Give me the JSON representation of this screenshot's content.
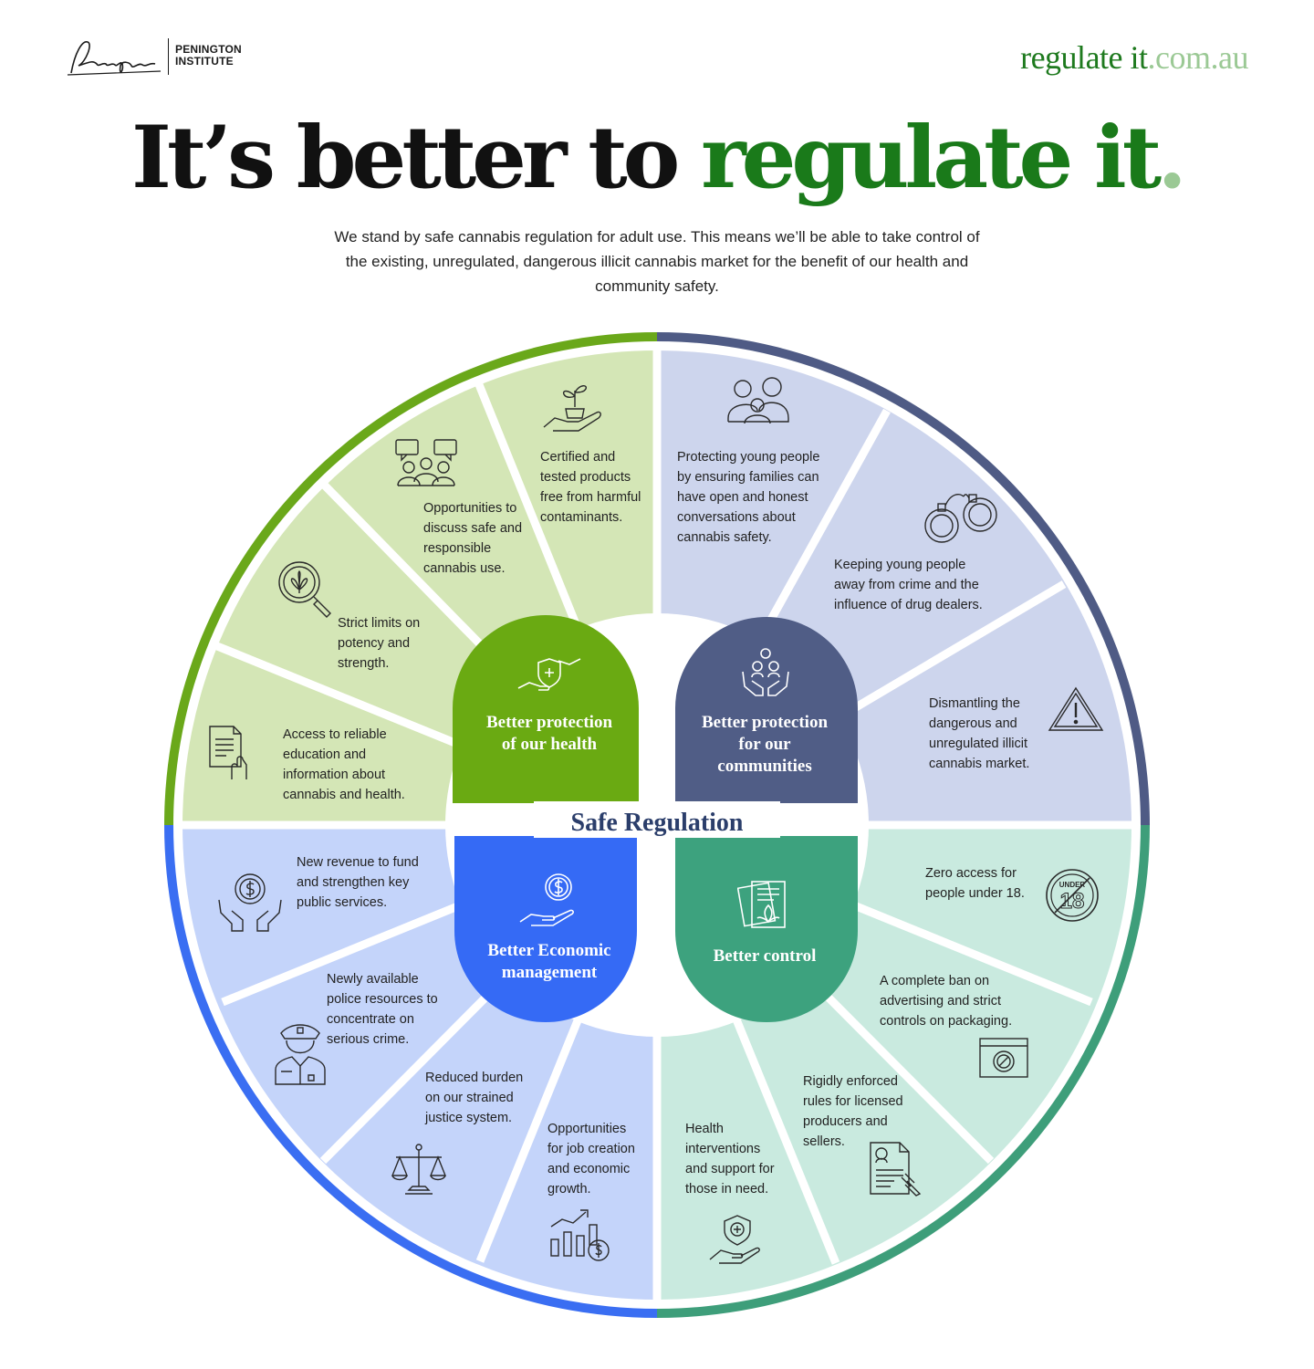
{
  "header": {
    "logo_text_line1": "PENINGTON",
    "logo_text_line2": "INSTITUTE",
    "site_url_main": "regulate it",
    "site_url_suffix": ".com.au"
  },
  "title": {
    "part1": "It’s better to ",
    "part2": "regulate it",
    "part3": "."
  },
  "intro": "We stand by safe cannabis regulation for adult use. This means we’ll be able to take control of the existing, unregulated, dangerous illicit cannabis market for the benefit of our health and community safety.",
  "colors": {
    "health_ring": "#6aa81a",
    "health_hub": "#6aaa12",
    "health_segment": "#d4e6b6",
    "community_ring": "#4f5b85",
    "community_hub": "#505d86",
    "community_segment": "#cdd5ed",
    "economic_ring": "#3a6ef2",
    "economic_hub": "#356af5",
    "economic_segment": "#c4d4fa",
    "control_ring": "#3e9e7a",
    "control_hub": "#3da27e",
    "control_segment": "#c9eadf",
    "center_label": "#2b3e6b"
  },
  "center_label": "Safe Regulation",
  "quadrants": {
    "health": {
      "hub_label": "Better protection of our health",
      "hub_icon": "handshake-shield-icon",
      "items": [
        {
          "text": "Certified and tested products free from harmful contaminants.",
          "icon": "plant-in-hand-icon"
        },
        {
          "text": "Opportunities to discuss safe and responsible cannabis use.",
          "icon": "group-chat-icon"
        },
        {
          "text": "Strict limits on potency and strength.",
          "icon": "magnifier-leaf-icon"
        },
        {
          "text": "Access to reliable education and information about cannabis and health.",
          "icon": "document-hand-icon"
        }
      ]
    },
    "community": {
      "hub_label": "Better protection for our communities",
      "hub_icon": "community-hands-icon",
      "items": [
        {
          "text": "Protecting young people by ensuring families can have open and honest conversations about cannabis safety.",
          "icon": "family-icon"
        },
        {
          "text": "Keeping young people away from crime and the influence of drug dealers.",
          "icon": "handcuffs-icon"
        },
        {
          "text": "Dismantling the dangerous and unregulated illicit cannabis market.",
          "icon": "warning-icon"
        }
      ]
    },
    "economic": {
      "hub_label": "Better Economic management",
      "hub_icon": "coin-hand-icon",
      "items": [
        {
          "text": "New revenue to fund and strengthen key public services.",
          "icon": "coin-hands-icon"
        },
        {
          "text": "Newly available police resources to concentrate on serious crime.",
          "icon": "police-officer-icon"
        },
        {
          "text": "Reduced burden on our strained justice system.",
          "icon": "scales-icon"
        },
        {
          "text": "Opportunities for job creation and economic growth.",
          "icon": "growth-chart-icon"
        }
      ]
    },
    "control": {
      "hub_label": "Better control",
      "hub_icon": "documents-leaf-icon",
      "items": [
        {
          "text": "Zero access for people under 18.",
          "icon": "under-18-icon",
          "icon_text": "UNDER",
          "icon_number": "18"
        },
        {
          "text": "A complete ban on advertising and strict controls on packaging.",
          "icon": "no-ads-icon"
        },
        {
          "text": "Rigidly enforced rules for licensed producers and sellers.",
          "icon": "license-gavel-icon"
        },
        {
          "text": "Health interventions and support for those in need.",
          "icon": "health-shield-hand-icon"
        }
      ]
    }
  }
}
